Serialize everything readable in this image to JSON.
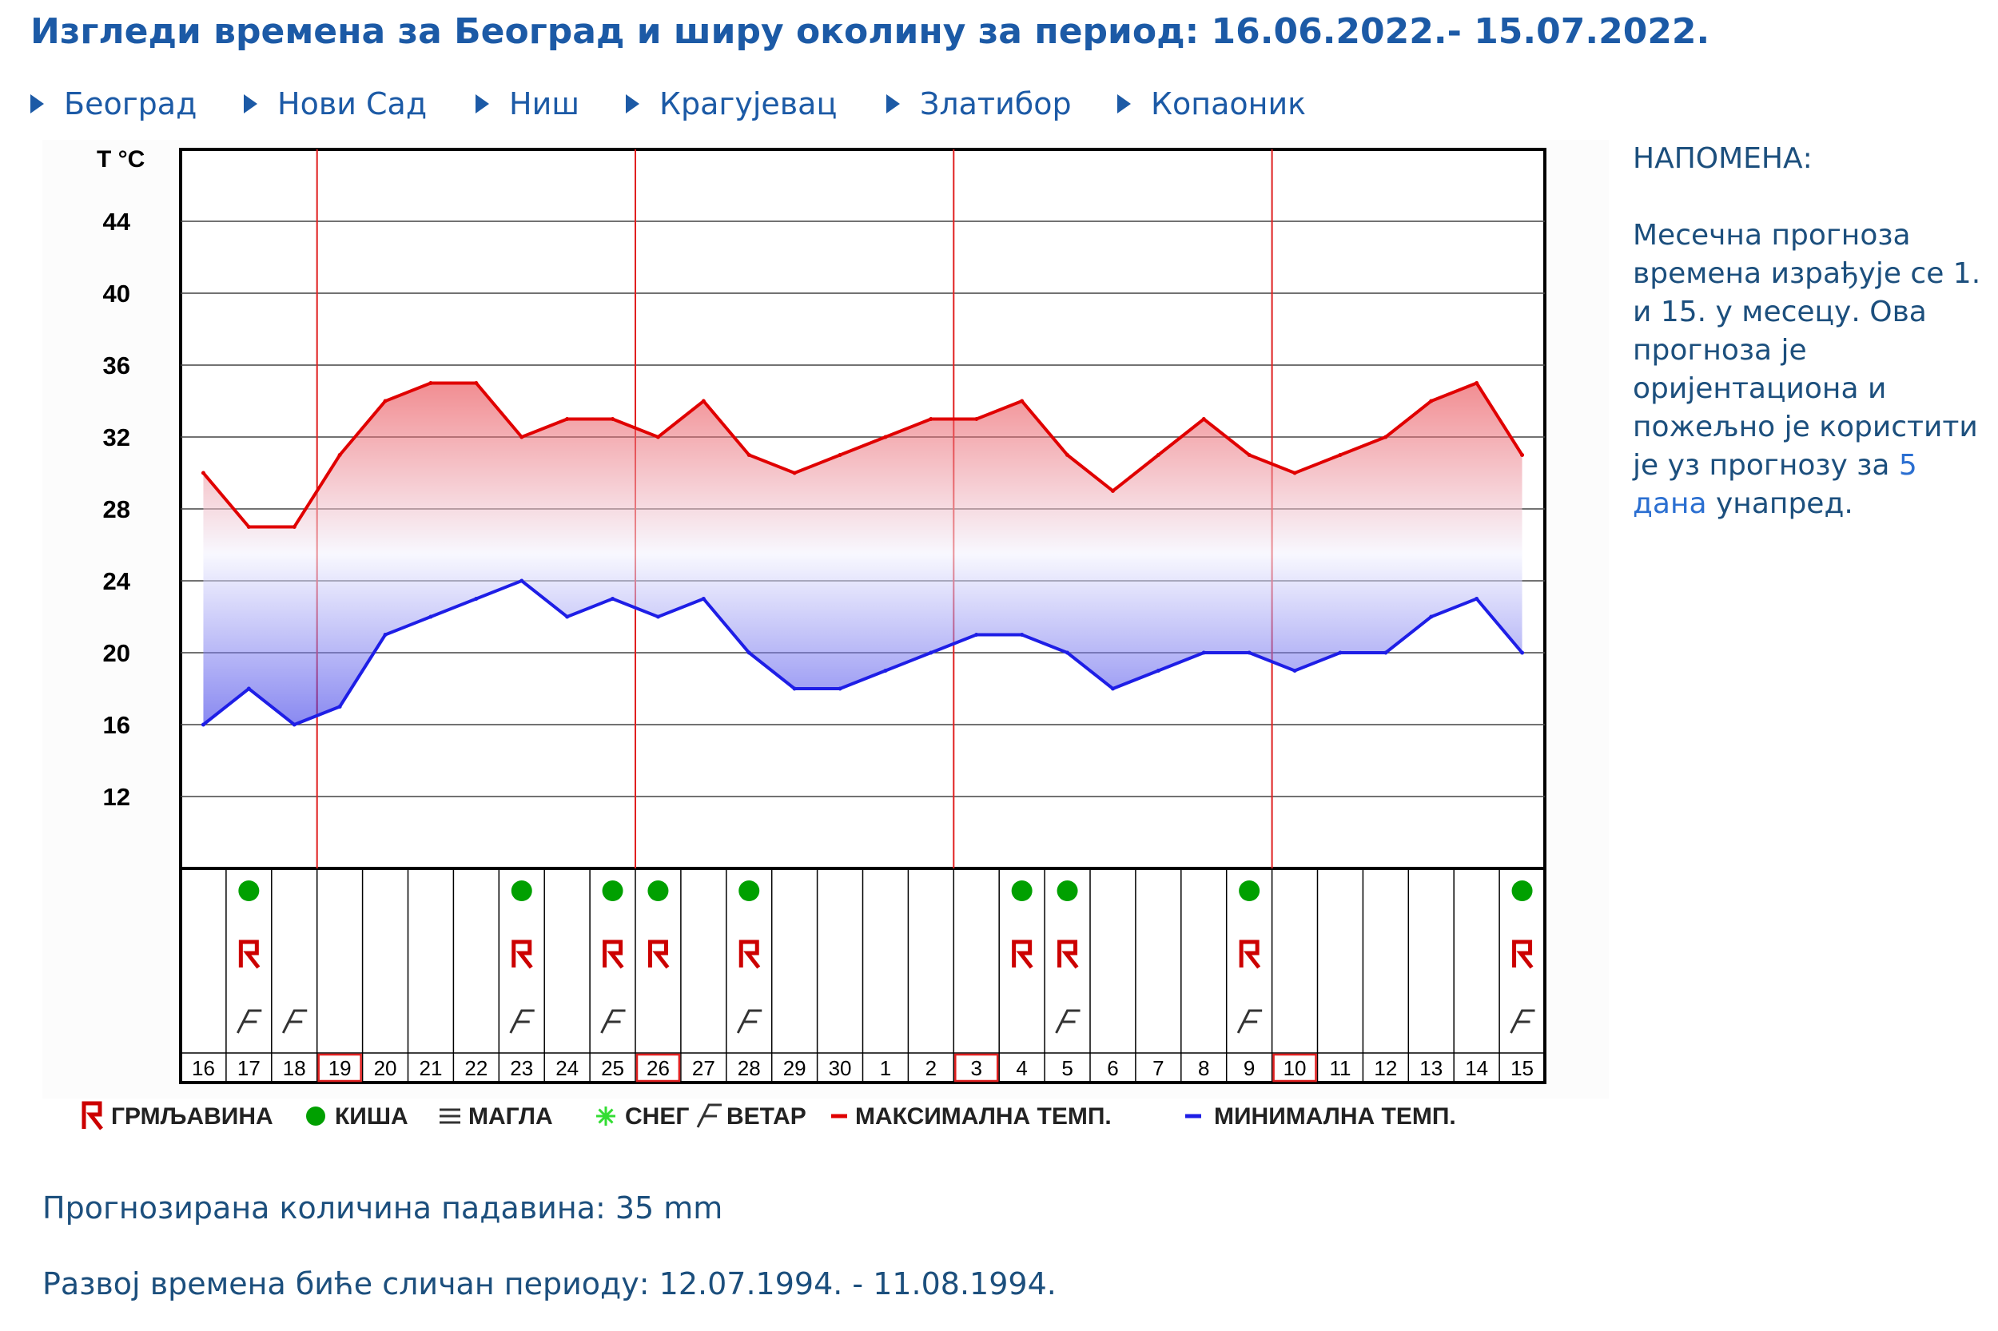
{
  "page": {
    "title": "Изгледи времена за Београд и ширу околину за период: 16.06.2022.- 15.07.2022."
  },
  "nav": [
    {
      "label": "Београд"
    },
    {
      "label": "Нови Сад"
    },
    {
      "label": "Ниш"
    },
    {
      "label": "Крагујевац"
    },
    {
      "label": "Златибор"
    },
    {
      "label": "Копаоник"
    }
  ],
  "colors": {
    "title": "#1c5aa6",
    "max_line": "#e00000",
    "min_line": "#1e1ee6",
    "rain": "#00a000",
    "thunder": "#cc0000",
    "text": "#1c4f7d"
  },
  "chart_data": {
    "type": "line",
    "ylabel": "T °C",
    "yticks": [
      12,
      16,
      20,
      24,
      28,
      32,
      36,
      40,
      44
    ],
    "ylim": [
      8,
      48
    ],
    "grid": true,
    "categories": [
      "16",
      "17",
      "18",
      "19",
      "20",
      "21",
      "22",
      "23",
      "24",
      "25",
      "26",
      "27",
      "28",
      "29",
      "30",
      "1",
      "2",
      "3",
      "4",
      "5",
      "6",
      "7",
      "8",
      "9",
      "10",
      "11",
      "12",
      "13",
      "14",
      "15"
    ],
    "highlighted_days": [
      "19",
      "26",
      "3",
      "10"
    ],
    "series": [
      {
        "name": "МАКСИМАЛНА ТЕМП.",
        "values": [
          30,
          27,
          27,
          31,
          34,
          35,
          35,
          32,
          33,
          33,
          32,
          34,
          31,
          30,
          31,
          32,
          33,
          33,
          34,
          31,
          29,
          31,
          33,
          31,
          30,
          31,
          32,
          34,
          35,
          31
        ]
      },
      {
        "name": "МИНИМАЛНА ТЕМП.",
        "values": [
          16,
          18,
          16,
          17,
          21,
          22,
          23,
          24,
          22,
          23,
          22,
          23,
          20,
          18,
          18,
          19,
          20,
          21,
          21,
          20,
          18,
          19,
          20,
          20,
          19,
          20,
          20,
          22,
          23,
          20
        ]
      }
    ],
    "events": {
      "rain": [
        "17",
        "23",
        "25",
        "26",
        "28",
        "4",
        "5",
        "9",
        "15"
      ],
      "thunder": [
        "17",
        "23",
        "25",
        "26",
        "28",
        "4",
        "5",
        "9",
        "15"
      ],
      "wind": [
        "17",
        "18",
        "23",
        "25",
        "28",
        "5",
        "9",
        "15"
      ],
      "fog": [],
      "snow": []
    },
    "legend": [
      {
        "symbol": "thunder",
        "label": "ГРМЉАВИНА"
      },
      {
        "symbol": "rain",
        "label": "КИША"
      },
      {
        "symbol": "fog",
        "label": "МАГЛА"
      },
      {
        "symbol": "snow",
        "label": "СНЕГ"
      },
      {
        "symbol": "wind",
        "label": "ВЕТАР"
      },
      {
        "symbol": "max",
        "label": "МАКСИМАЛНА ТЕМП."
      },
      {
        "symbol": "min",
        "label": "МИНИМАЛНА ТЕМП."
      }
    ]
  },
  "note": {
    "title": "НАПОМЕНА:",
    "body_before": "Месечна прогноза времена израђује се 1. и 15. у месецу. Ова прогноза је оријентациона и пожељно је користити је уз прогнозу за ",
    "link": "5 дана",
    "body_after": " унапред."
  },
  "info": {
    "precip": "Прогнозирана количина падавина:  35  mm",
    "analog": "Развој времена биће сличан периоду: 12.07.1994. - 11.08.1994."
  }
}
